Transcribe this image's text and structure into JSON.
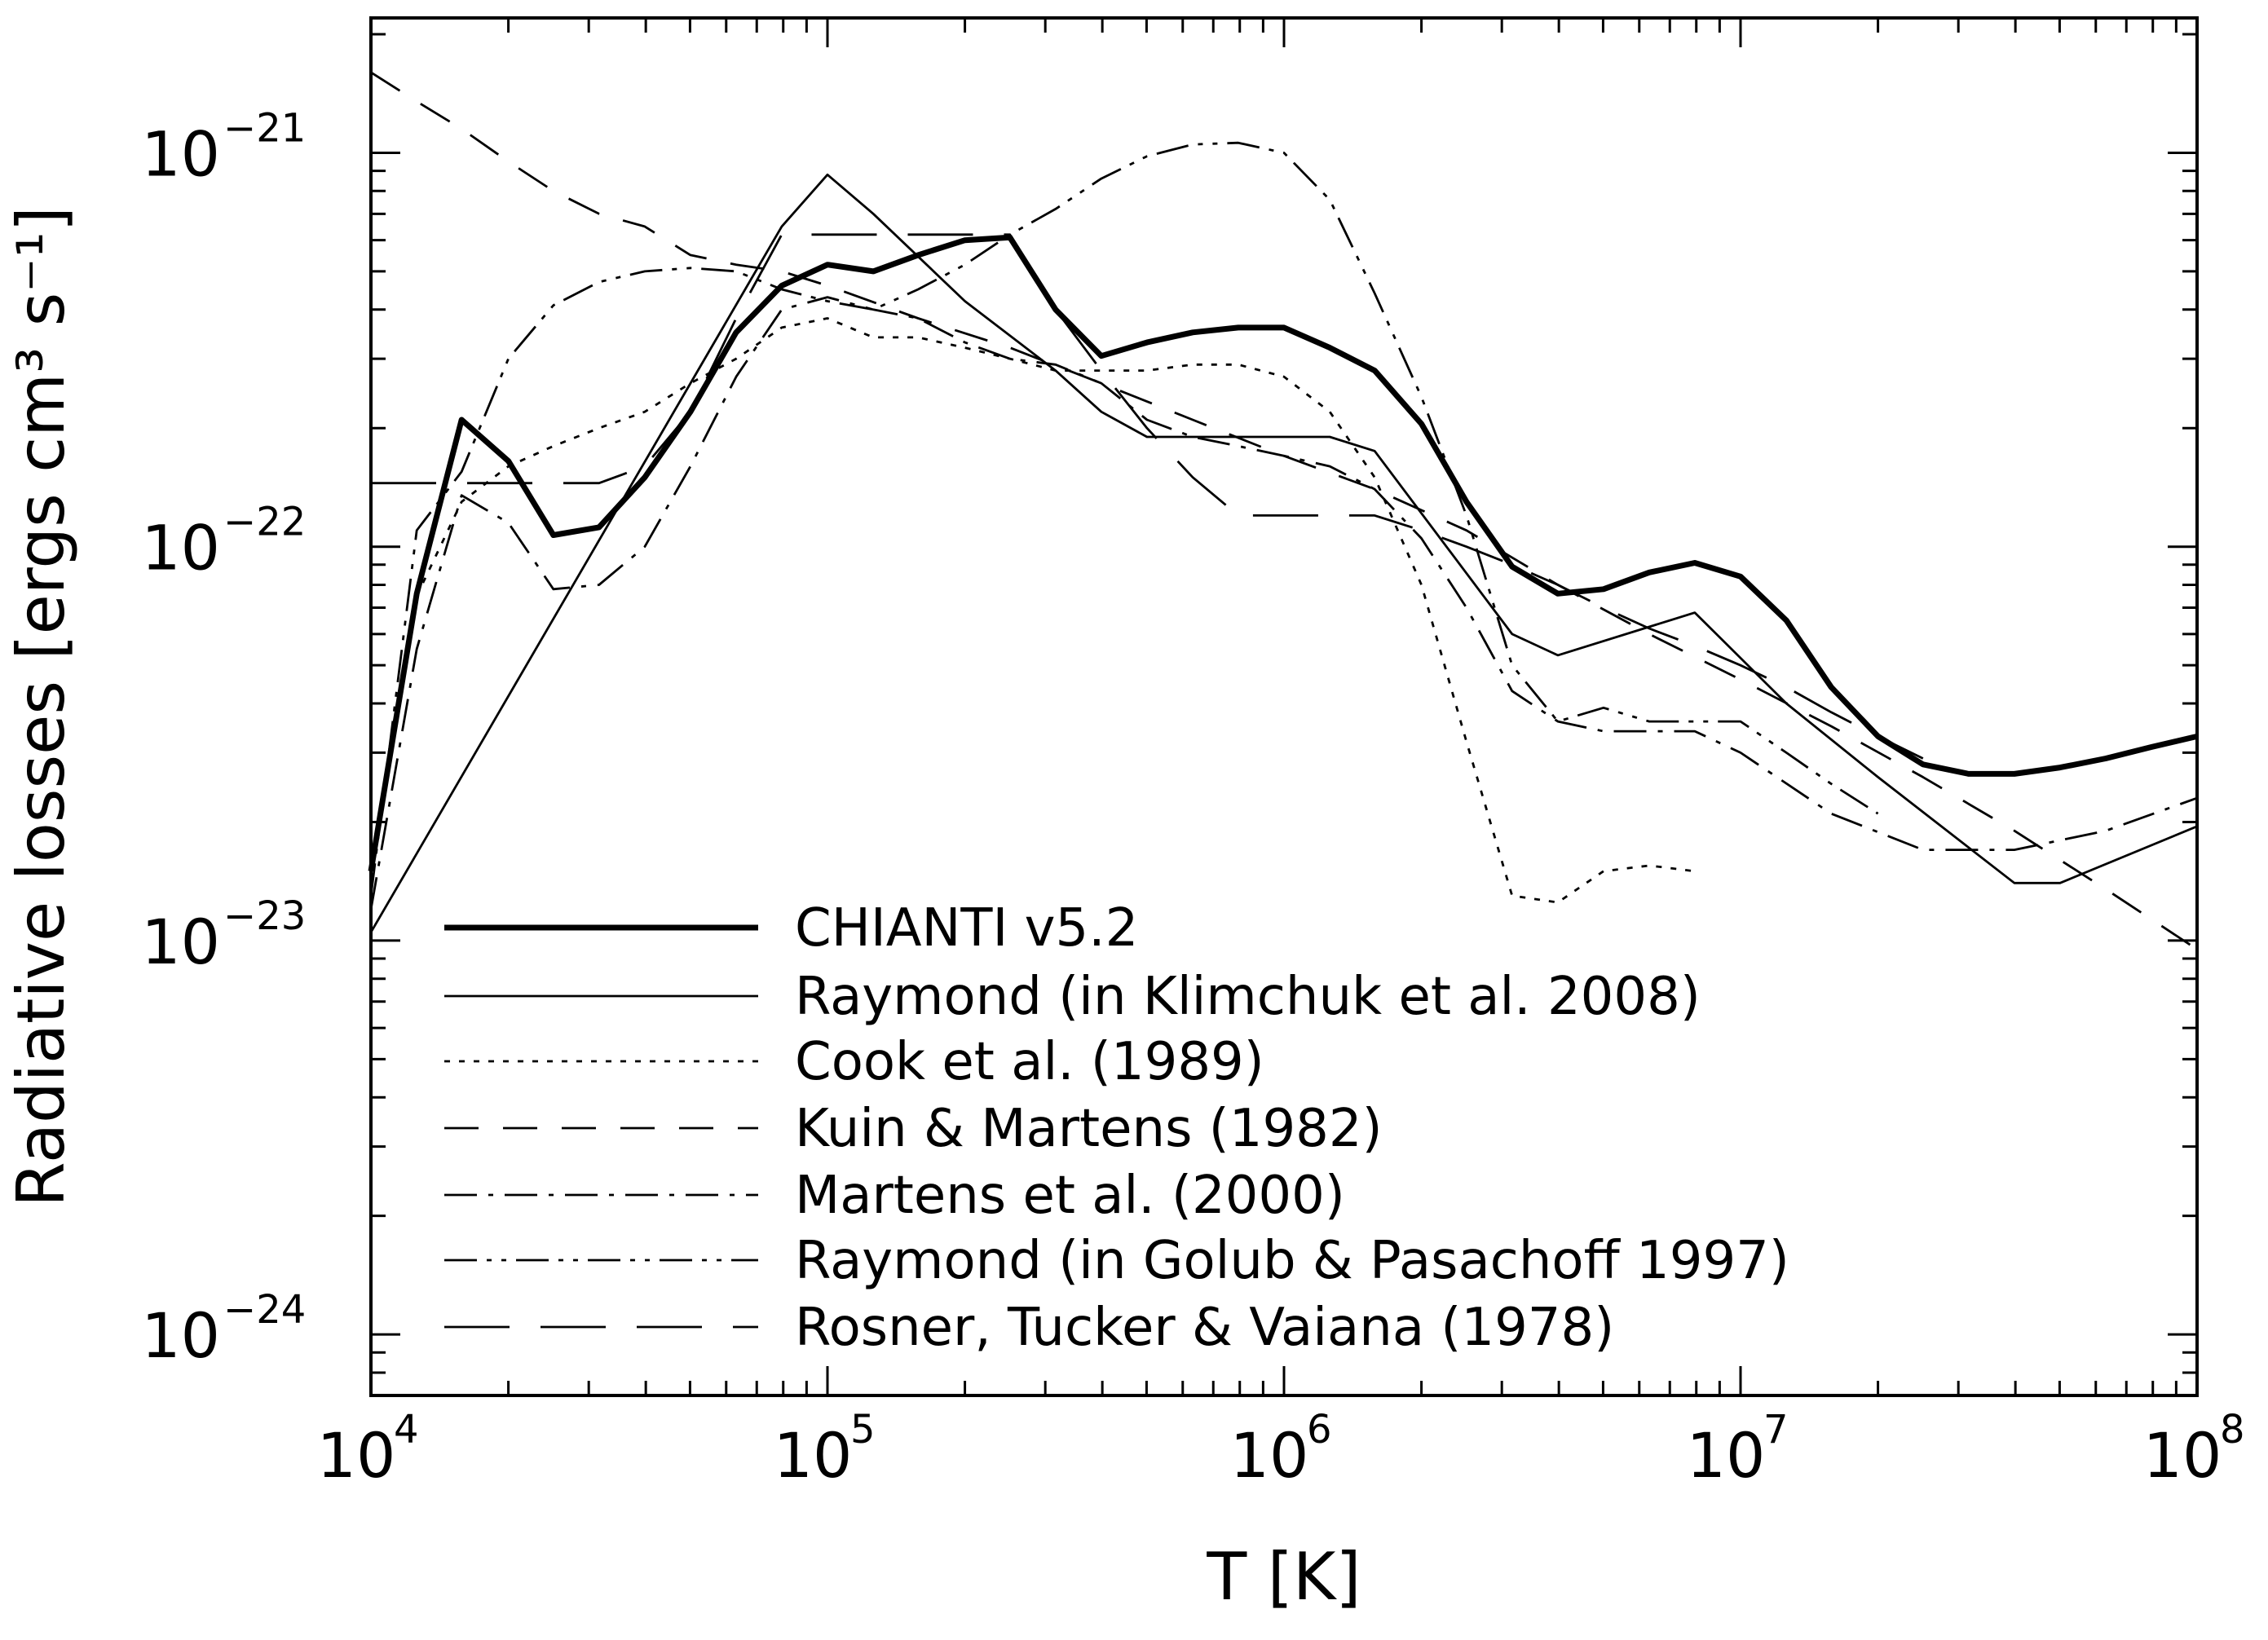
{
  "chart_data": {
    "type": "line",
    "xscale": "log",
    "yscale": "log",
    "xlabel": "T [K]",
    "ylabel": "Radiative losses [ergs cm³ s⁻¹]",
    "xlim": [
      10000,
      100000000
    ],
    "ylim": [
      7e-25,
      2.2e-21
    ],
    "x_ticks": [
      {
        "value": 10000,
        "base": "10",
        "exp": "4"
      },
      {
        "value": 100000,
        "base": "10",
        "exp": "5"
      },
      {
        "value": 1000000,
        "base": "10",
        "exp": "6"
      },
      {
        "value": 10000000,
        "base": "10",
        "exp": "7"
      },
      {
        "value": 100000000,
        "base": "10",
        "exp": "8"
      }
    ],
    "y_ticks": [
      {
        "value": 1e-24,
        "base": "10",
        "exp": "−24"
      },
      {
        "value": 1e-23,
        "base": "10",
        "exp": "−23"
      },
      {
        "value": 1e-22,
        "base": "10",
        "exp": "−22"
      },
      {
        "value": 1e-21,
        "base": "10",
        "exp": "−21"
      }
    ],
    "series": [
      {
        "name": "CHIANTI v5.2",
        "style": "thick",
        "x": [
          10000,
          12600,
          15800,
          20000,
          25100,
          31600,
          39800,
          50100,
          63100,
          79400,
          100000,
          126000,
          158000,
          200000,
          251000,
          316000,
          398000,
          501000,
          631000,
          794000,
          1000000,
          1260000,
          1580000,
          2000000,
          2510000,
          3160000,
          3980000,
          5010000,
          6310000,
          7940000,
          10000000,
          12600000,
          15800000,
          20000000,
          25100000,
          31600000,
          39800000,
          50100000,
          63100000,
          79400000,
          100000000
        ],
        "y": [
          1.5e-23,
          7.6e-23,
          2.1e-22,
          1.65e-22,
          1.07e-22,
          1.12e-22,
          1.5e-22,
          2.2e-22,
          3.5e-22,
          4.6e-22,
          5.2e-22,
          5e-22,
          5.5e-22,
          6e-22,
          6.1e-22,
          4e-22,
          3.05e-22,
          3.3e-22,
          3.5e-22,
          3.6e-22,
          3.6e-22,
          3.2e-22,
          2.8e-22,
          2.05e-22,
          1.3e-22,
          8.9e-23,
          7.6e-23,
          7.8e-23,
          8.6e-23,
          9.1e-23,
          8.4e-23,
          6.5e-23,
          4.4e-23,
          3.3e-23,
          2.8e-23,
          2.65e-23,
          2.65e-23,
          2.75e-23,
          2.9e-23,
          3.1e-23,
          3.3e-23
        ]
      },
      {
        "name": "Raymond (in Klimchuk et al. 2008)",
        "style": "solid",
        "x": [
          10000,
          79400,
          100000,
          126000,
          200000,
          316000,
          398000,
          501000,
          1000000,
          1260000,
          1580000,
          3160000,
          3980000,
          7940000,
          12600000,
          20000000,
          39800000,
          50100000,
          100000000
        ],
        "y": [
          1.05e-23,
          6.5e-22,
          8.8e-22,
          7e-22,
          4.2e-22,
          2.8e-22,
          2.2e-22,
          1.9e-22,
          1.9e-22,
          1.9e-22,
          1.75e-22,
          6e-23,
          5.3e-23,
          6.8e-23,
          4e-23,
          2.6e-23,
          1.4e-23,
          1.4e-23,
          1.95e-23
        ]
      },
      {
        "name": "Cook et al. (1989)",
        "style": "dotted",
        "x": [
          10000,
          12600,
          15800,
          20000,
          25100,
          31600,
          39800,
          50100,
          63100,
          79400,
          100000,
          126000,
          158000,
          200000,
          251000,
          316000,
          398000,
          501000,
          631000,
          794000,
          1000000,
          1260000,
          1580000,
          2000000,
          2510000,
          3160000,
          3980000,
          5010000,
          6310000,
          7940000
        ],
        "y": [
          1.5e-23,
          7.5e-23,
          1.3e-22,
          1.6e-22,
          1.8e-22,
          2e-22,
          2.2e-22,
          2.6e-22,
          3e-22,
          3.6e-22,
          3.8e-22,
          3.4e-22,
          3.4e-22,
          3.2e-22,
          3e-22,
          2.8e-22,
          2.8e-22,
          2.8e-22,
          2.9e-22,
          2.9e-22,
          2.7e-22,
          2.2e-22,
          1.5e-22,
          8e-23,
          3.2e-23,
          1.3e-23,
          1.25e-23,
          1.5e-23,
          1.55e-23,
          1.5e-23
        ]
      },
      {
        "name": "Kuin & Martens (1982)",
        "style": "long-dash",
        "x": [
          10000,
          12600,
          15800,
          20000,
          25100,
          31600,
          39800,
          50100,
          63100,
          79400,
          100000,
          158000,
          251000,
          398000,
          631000,
          1000000,
          1580000,
          2510000,
          3980000,
          6310000,
          10000000,
          15800000,
          25100000,
          39800000,
          63100000,
          100000000
        ],
        "y": [
          1.6e-21,
          1.35e-21,
          1.15e-21,
          9.5e-22,
          8e-22,
          7e-22,
          6.5e-22,
          5.5e-22,
          5.2e-22,
          5e-22,
          4.6e-22,
          3.8e-22,
          3.2e-22,
          2.6e-22,
          2.1e-22,
          1.7e-22,
          1.4e-22,
          1.1e-22,
          8e-23,
          6e-23,
          4.6e-23,
          3.5e-23,
          2.6e-23,
          1.9e-23,
          1.35e-23,
          9.5e-24
        ]
      },
      {
        "name": "Martens et al. (2000)",
        "style": "dash-dot",
        "x": [
          10000,
          12600,
          15800,
          20000,
          25100,
          31600,
          39800,
          50100,
          63100,
          79400,
          100000,
          126000,
          158000,
          200000,
          251000,
          316000,
          398000,
          501000,
          631000,
          794000,
          1000000,
          1260000,
          1580000,
          2000000,
          2510000,
          3160000,
          3980000,
          5010000,
          6310000,
          7940000,
          10000000,
          15800000,
          25100000,
          39800000,
          63100000,
          100000000
        ],
        "y": [
          1.2e-23,
          5.5e-23,
          1.35e-22,
          1.15e-22,
          7.8e-23,
          8e-23,
          1e-22,
          1.6e-22,
          2.7e-22,
          4e-22,
          4.3e-22,
          4e-22,
          3.8e-22,
          3.3e-22,
          3e-22,
          2.9e-22,
          2.6e-22,
          2.1e-22,
          1.9e-22,
          1.8e-22,
          1.7e-22,
          1.6e-22,
          1.4e-22,
          1.05e-22,
          7e-23,
          4.3e-23,
          3.6e-23,
          3.4e-23,
          3.4e-23,
          3.4e-23,
          3e-23,
          2.1e-23,
          1.7e-23,
          1.7e-23,
          1.9e-23,
          2.3e-23
        ]
      },
      {
        "name": "Raymond (in Golub & Pasachoff 1997)",
        "style": "dash-dot-dot",
        "x": [
          10000,
          12600,
          15800,
          20000,
          25100,
          31600,
          39800,
          50100,
          63100,
          79400,
          100000,
          126000,
          158000,
          200000,
          251000,
          316000,
          398000,
          501000,
          631000,
          794000,
          1000000,
          1260000,
          1580000,
          2000000,
          2510000,
          3160000,
          3980000,
          5010000,
          6310000,
          7940000,
          10000000,
          12600000,
          15800000,
          20000000
        ],
        "y": [
          1.3e-23,
          1.1e-22,
          1.55e-22,
          3e-22,
          4.1e-22,
          4.7e-22,
          5e-22,
          5.1e-22,
          5e-22,
          4.5e-22,
          4.2e-22,
          4e-22,
          4.5e-22,
          5.2e-22,
          6.2e-22,
          7.2e-22,
          8.6e-22,
          9.8e-22,
          1.05e-21,
          1.06e-21,
          1e-21,
          7.6e-22,
          4.4e-22,
          2.4e-22,
          1.2e-22,
          5e-23,
          3.6e-23,
          3.9e-23,
          3.6e-23,
          3.6e-23,
          3.6e-23,
          3e-23,
          2.5e-23,
          2.1e-23
        ]
      },
      {
        "name": "Rosner, Tucker & Vaiana (1978)",
        "style": "very-long-dash",
        "x": [
          10000,
          12600,
          15800,
          20000,
          25100,
          31600,
          39800,
          50100,
          63100,
          79400,
          100000,
          126000,
          158000,
          200000,
          251000,
          316000,
          398000,
          501000,
          631000,
          794000,
          1000000,
          1260000,
          1580000,
          2000000,
          2510000,
          3160000,
          3980000,
          5010000,
          6310000,
          7940000,
          10000000,
          12600000,
          15800000,
          20000000,
          25100000
        ],
        "y": [
          1.45e-22,
          1.45e-22,
          1.45e-22,
          1.45e-22,
          1.45e-22,
          1.45e-22,
          1.6e-22,
          2.2e-22,
          3.8e-22,
          6.2e-22,
          6.2e-22,
          6.2e-22,
          6.2e-22,
          6.2e-22,
          6.2e-22,
          4e-22,
          2.8e-22,
          2e-22,
          1.5e-22,
          1.2e-22,
          1.2e-22,
          1.2e-22,
          1.2e-22,
          1.1e-22,
          1e-22,
          9e-23,
          8e-23,
          7e-23,
          6.2e-23,
          5.6e-23,
          5e-23,
          4.4e-23,
          3.8e-23,
          3.3e-23,
          2.9e-23
        ]
      }
    ]
  }
}
